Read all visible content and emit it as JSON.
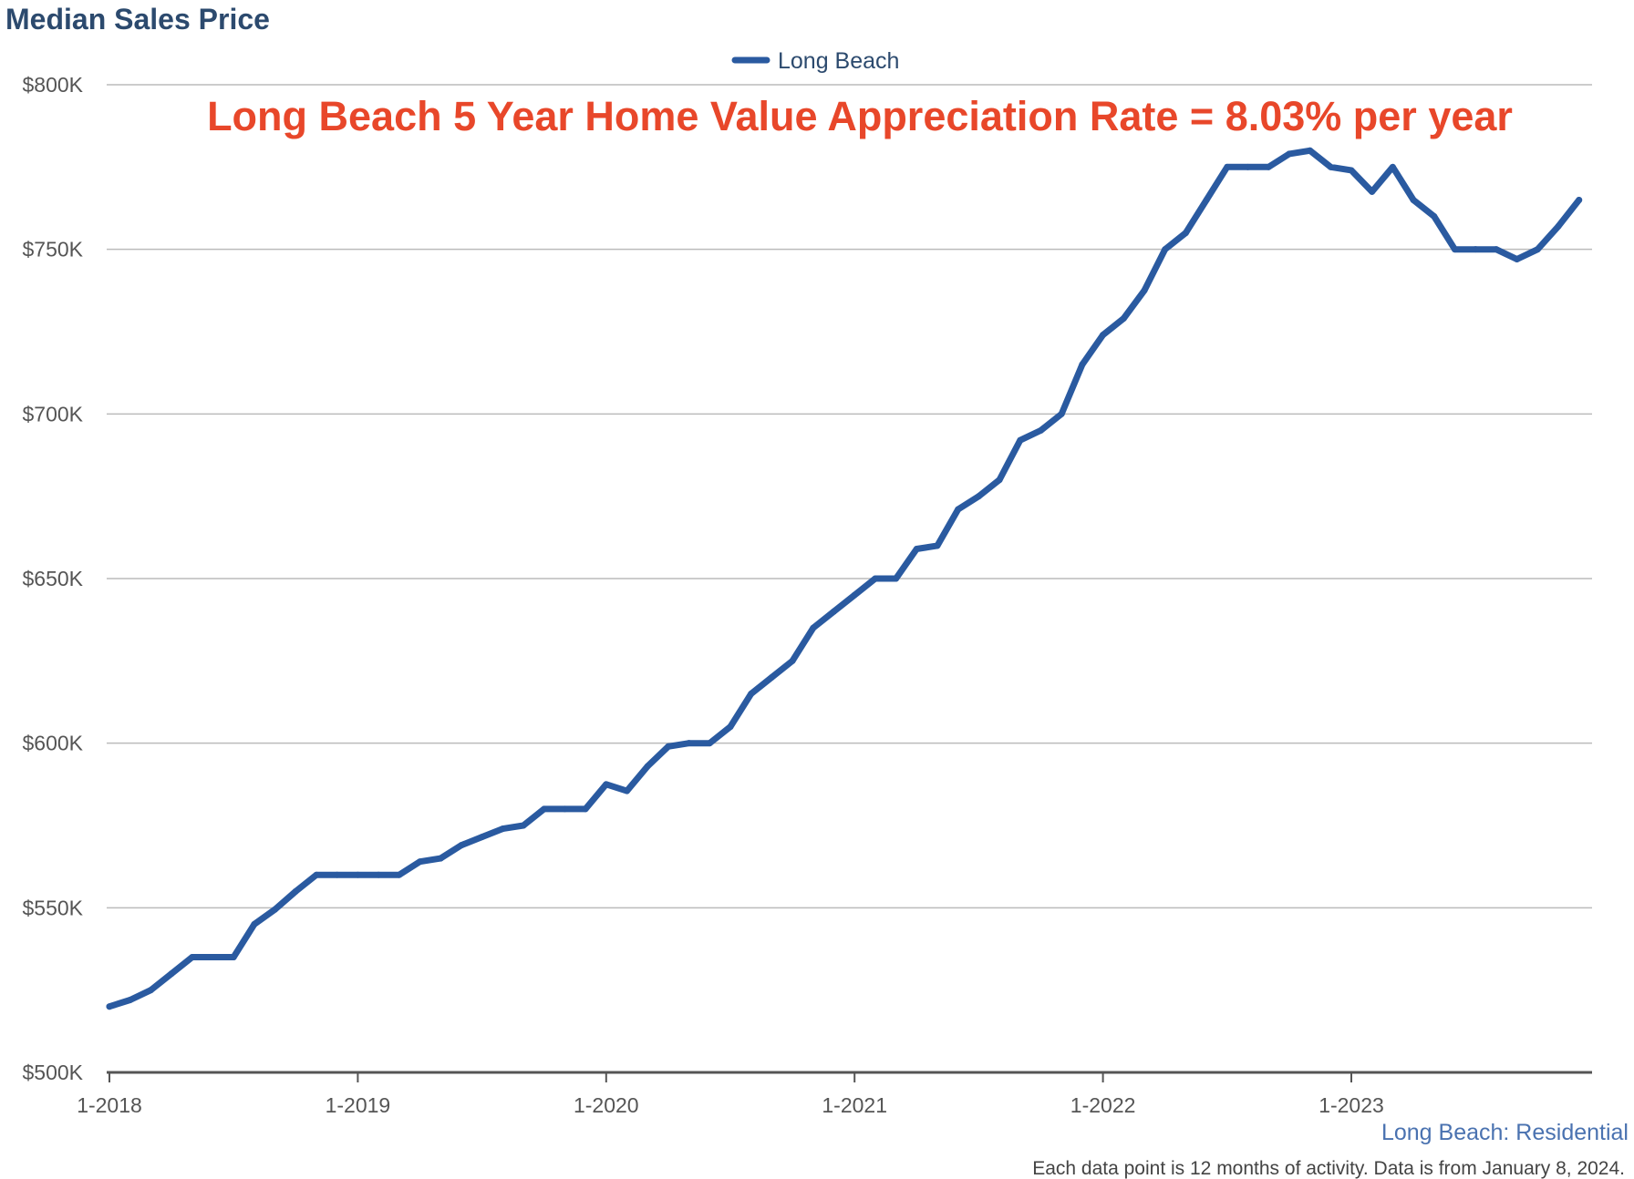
{
  "chart_data": {
    "type": "line",
    "title": "Median Sales Price",
    "annotation": "Long Beach 5 Year Home Value Appreciation Rate = 8.03% per year",
    "source_label": "Long Beach: Residential",
    "footnote": "Each data point is 12 months of activity. Data is from January 8, 2024.",
    "xlabel": "",
    "ylabel": "",
    "ylim": [
      500000,
      800000
    ],
    "y_ticks": [
      {
        "value": 500000,
        "label": "$500K"
      },
      {
        "value": 550000,
        "label": "$550K"
      },
      {
        "value": 600000,
        "label": "$600K"
      },
      {
        "value": 650000,
        "label": "$650K"
      },
      {
        "value": 700000,
        "label": "$700K"
      },
      {
        "value": 750000,
        "label": "$750K"
      },
      {
        "value": 800000,
        "label": "$800K"
      }
    ],
    "x_ticks": [
      {
        "index": 0,
        "label": "1-2018"
      },
      {
        "index": 12,
        "label": "1-2019"
      },
      {
        "index": 24,
        "label": "1-2020"
      },
      {
        "index": 36,
        "label": "1-2021"
      },
      {
        "index": 48,
        "label": "1-2022"
      },
      {
        "index": 60,
        "label": "1-2023"
      }
    ],
    "grid": true,
    "legend_position": "top-center",
    "series": [
      {
        "name": "Long Beach",
        "color": "#2a5aa0",
        "values": [
          520000,
          522000,
          525000,
          530000,
          535000,
          535000,
          535000,
          545000,
          549500,
          555000,
          560000,
          560000,
          560000,
          560000,
          560000,
          564000,
          565000,
          569000,
          571500,
          574000,
          575000,
          580000,
          580000,
          580000,
          587500,
          585500,
          593000,
          599000,
          600000,
          600000,
          605000,
          615000,
          620000,
          625000,
          635000,
          640000,
          645000,
          650000,
          650000,
          659000,
          660000,
          671000,
          675000,
          680000,
          692000,
          695000,
          700000,
          715000,
          724000,
          729000,
          737500,
          750000,
          755000,
          765000,
          775000,
          775000,
          775000,
          779000,
          780000,
          775000,
          774000,
          767500,
          775000,
          765000,
          760000,
          750000,
          750000,
          750000,
          747000,
          750000,
          757000,
          765000
        ]
      }
    ],
    "colors": {
      "title": "#2c4a6e",
      "annotation": "#e8472a",
      "line": "#2a5aa0",
      "grid": "#bbbbbb",
      "axis": "#555555",
      "tick_text": "#555555",
      "legend_text": "#2c4a6e",
      "source": "#4a72b0",
      "footnote": "#444444"
    }
  }
}
